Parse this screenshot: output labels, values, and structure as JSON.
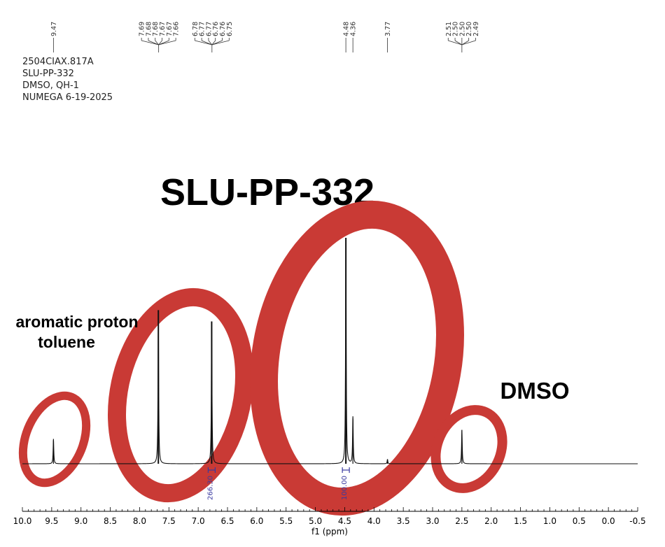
{
  "meta": {
    "lines": [
      "2504CIAX.817A",
      "SLU-PP-332",
      "DMSO, QH-1",
      "NUMEGA 6-19-2025"
    ]
  },
  "colors": {
    "spectrum": "#111111",
    "integral": "#3a3aa0",
    "highlight": "#c93a35",
    "annotation": "#000000"
  },
  "chart_data": {
    "type": "line",
    "title": "SLU-PP-332",
    "xlabel": "f1 (ppm)",
    "ylabel": "",
    "xlim": [
      10.0,
      -0.5
    ],
    "x_reversed": true,
    "ticks": [
      "10.0",
      "9.5",
      "9.0",
      "8.5",
      "8.0",
      "7.5",
      "7.0",
      "6.5",
      "6.0",
      "5.5",
      "5.0",
      "4.5",
      "4.0",
      "3.5",
      "3.0",
      "2.5",
      "2.0",
      "1.5",
      "1.0",
      "0.5",
      "0.0",
      "-0.5"
    ],
    "peak_labels": [
      "9.47",
      "7.69",
      "7.68",
      "7.68",
      "7.67",
      "7.67",
      "7.66",
      "6.78",
      "6.77",
      "6.77",
      "6.76",
      "6.76",
      "6.75",
      "4.48",
      "4.36",
      "3.77",
      "2.51",
      "2.50",
      "2.50",
      "2.50",
      "2.49"
    ],
    "peaks": [
      {
        "ppm": 9.47,
        "height": 0.11
      },
      {
        "ppm": 7.68,
        "height": 0.68
      },
      {
        "ppm": 6.77,
        "height": 0.63
      },
      {
        "ppm": 4.48,
        "height": 1.0
      },
      {
        "ppm": 4.36,
        "height": 0.21
      },
      {
        "ppm": 3.77,
        "height": 0.02
      },
      {
        "ppm": 2.5,
        "height": 0.15
      }
    ],
    "integrals": [
      {
        "label": "266.30",
        "ppm": 6.77
      },
      {
        "label": "100.00",
        "ppm": 4.48
      }
    ],
    "annotations": [
      {
        "text": "aromatic proton",
        "line2": "toluene"
      },
      {
        "text": "DMSO"
      }
    ]
  }
}
